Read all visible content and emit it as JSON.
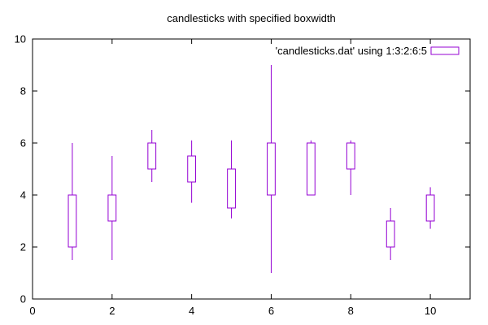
{
  "chart_data": {
    "type": "candlestick",
    "title": "candlesticks with specified boxwidth",
    "xlabel": "",
    "ylabel": "",
    "xlim": [
      0,
      11
    ],
    "ylim": [
      0,
      10
    ],
    "xticks": [
      0,
      2,
      4,
      6,
      8,
      10
    ],
    "yticks": [
      0,
      2,
      4,
      6,
      8,
      10
    ],
    "xtick_labels": [
      "0",
      "2",
      "4",
      "6",
      "8",
      "10"
    ],
    "ytick_labels": [
      "0",
      "2",
      "4",
      "6",
      "8",
      "10"
    ],
    "grid": false,
    "legend_position": "top-right",
    "boxwidth": 0.2,
    "series": [
      {
        "name": "'candlesticks.dat' using 1:3:2:6:5",
        "color": "#9400d3",
        "points": [
          {
            "x": 1,
            "open": 2.0,
            "low": 1.5,
            "high": 6.0,
            "close": 4.0
          },
          {
            "x": 2,
            "open": 3.0,
            "low": 1.5,
            "high": 5.5,
            "close": 4.0
          },
          {
            "x": 3,
            "open": 5.0,
            "low": 4.5,
            "high": 6.5,
            "close": 6.0
          },
          {
            "x": 4,
            "open": 4.5,
            "low": 3.7,
            "high": 6.1,
            "close": 5.5
          },
          {
            "x": 5,
            "open": 3.5,
            "low": 3.1,
            "high": 6.1,
            "close": 5.0
          },
          {
            "x": 6,
            "open": 4.0,
            "low": 1.0,
            "high": 9.0,
            "close": 6.0
          },
          {
            "x": 7,
            "open": 4.0,
            "low": 4.0,
            "high": 6.1,
            "close": 6.0
          },
          {
            "x": 8,
            "open": 5.0,
            "low": 4.0,
            "high": 6.1,
            "close": 6.0
          },
          {
            "x": 9,
            "open": 2.0,
            "low": 1.5,
            "high": 3.5,
            "close": 3.0
          },
          {
            "x": 10,
            "open": 3.0,
            "low": 2.7,
            "high": 4.3,
            "close": 4.0
          }
        ]
      }
    ]
  }
}
